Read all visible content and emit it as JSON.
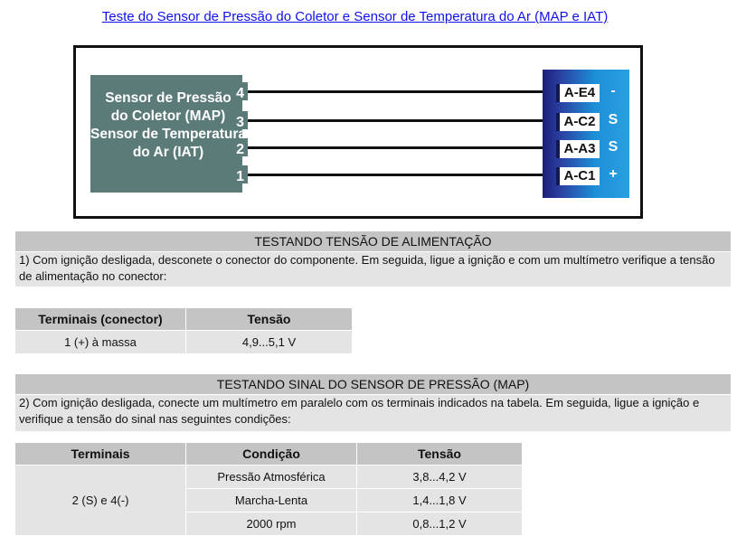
{
  "title": "Teste do Sensor de Pressão do Coletor e Sensor de Temperatura do Ar (MAP e IAT)",
  "diagram": {
    "sensor_label": [
      "Sensor de Pressão",
      "do Coletor (MAP)",
      "Sensor de Temperatura",
      "do Ar (IAT)"
    ],
    "pins": [
      {
        "pin": "4",
        "terminal": "A-E4",
        "signal": "-"
      },
      {
        "pin": "3",
        "terminal": "A-C2",
        "signal": "S"
      },
      {
        "pin": "2",
        "terminal": "A-A3",
        "signal": "S"
      },
      {
        "pin": "1",
        "terminal": "A-C1",
        "signal": "+"
      }
    ],
    "colors": {
      "sensor": "#5b7b79",
      "connector": "#1d8fd8"
    }
  },
  "section1": {
    "heading": "TESTANDO TENSÃO DE ALIMENTAÇÃO",
    "text": "1) Com ignição desligada, desconete o conector do componente. Em seguida, ligue a ignição e com um multímetro verifique a tensão de alimentação no conector:",
    "table": {
      "headers": [
        "Terminais (conector)",
        "Tensão"
      ],
      "rows": [
        [
          "1 (+) à massa",
          "4,9...5,1 V"
        ]
      ]
    }
  },
  "section2": {
    "heading": "TESTANDO SINAL DO SENSOR DE PRESSÃO (MAP)",
    "text": "2) Com ignição desligada, conecte um multímetro em paralelo com os terminais indicados na tabela. Em seguida, ligue a ignição e verifique a tensão do sinal nas seguintes condições:",
    "table": {
      "headers": [
        "Terminais",
        "Condição",
        "Tensão"
      ],
      "terminals": "2 (S) e 4(-)",
      "rows": [
        [
          "Pressão Atmosférica",
          "3,8...4,2 V"
        ],
        [
          "Marcha-Lenta",
          "1,4...1,8 V"
        ],
        [
          "2000 rpm",
          "0,8...1,2 V"
        ]
      ]
    }
  }
}
